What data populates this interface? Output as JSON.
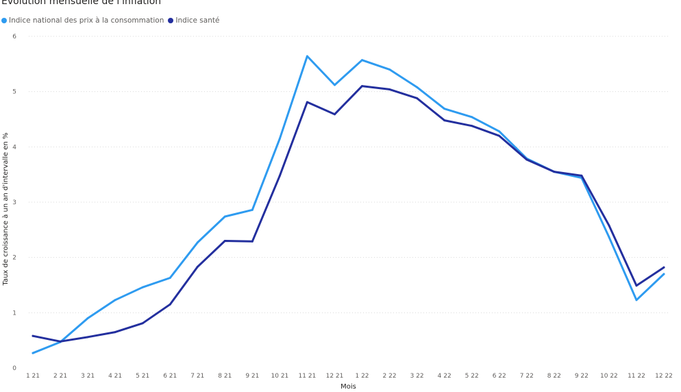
{
  "chart_data": {
    "type": "line",
    "title": "Évolution mensuelle de l'inflation",
    "xlabel": "Mois",
    "ylabel": "Taux de croissance à un an d'intervalle en %",
    "ylim": [
      0,
      6
    ],
    "yticks": [
      "0",
      "1",
      "2",
      "3",
      "4",
      "5",
      "6"
    ],
    "grid": true,
    "legend_position": "top-left",
    "categories": [
      "1 21",
      "2 21",
      "3 21",
      "4 21",
      "5 21",
      "6 21",
      "7 21",
      "8 21",
      "9 21",
      "10 21",
      "11 21",
      "12 21",
      "1 22",
      "2 22",
      "3 22",
      "4 22",
      "5 22",
      "6 22",
      "7 22",
      "8 22",
      "9 22",
      "10 22",
      "11 22",
      "12 22"
    ],
    "series": [
      {
        "name": "Indice national des prix à la consommation",
        "color": "#2e9bf0",
        "values": [
          0.27,
          0.47,
          0.9,
          1.23,
          1.46,
          1.63,
          2.27,
          2.74,
          2.86,
          4.15,
          5.64,
          5.12,
          5.57,
          5.4,
          5.08,
          4.69,
          4.54,
          4.28,
          3.79,
          3.55,
          3.44,
          2.37,
          1.23,
          1.7
        ]
      },
      {
        "name": "Indice santé",
        "color": "#232f9e",
        "values": [
          0.58,
          0.48,
          0.56,
          0.65,
          0.81,
          1.15,
          1.83,
          2.3,
          2.29,
          3.48,
          4.81,
          4.59,
          5.1,
          5.04,
          4.88,
          4.48,
          4.38,
          4.2,
          3.77,
          3.55,
          3.48,
          2.58,
          1.49,
          1.82
        ]
      }
    ]
  }
}
